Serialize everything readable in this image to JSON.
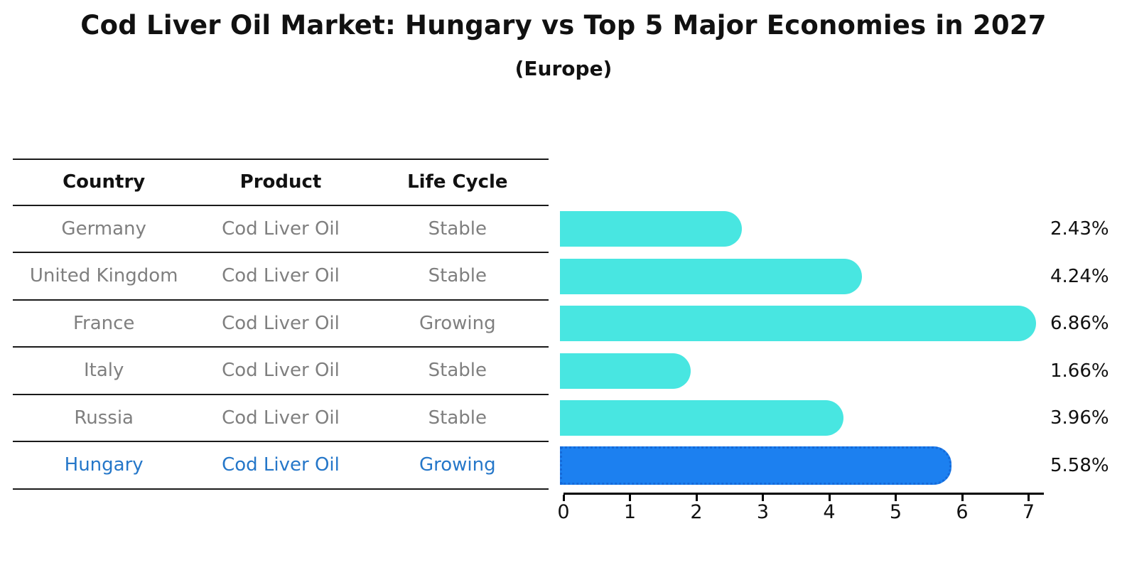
{
  "header": {
    "title": "Cod Liver Oil Market: Hungary vs Top 5 Major Economies in 2027",
    "subtitle": "(Europe)"
  },
  "table": {
    "columns": [
      "Country",
      "Product",
      "Life Cycle"
    ],
    "rows": [
      {
        "country": "Germany",
        "product": "Cod Liver Oil",
        "life_cycle": "Stable"
      },
      {
        "country": "United Kingdom",
        "product": "Cod Liver Oil",
        "life_cycle": "Stable"
      },
      {
        "country": "France",
        "product": "Cod Liver Oil",
        "life_cycle": "Growing"
      },
      {
        "country": "Italy",
        "product": "Cod Liver Oil",
        "life_cycle": "Stable"
      },
      {
        "country": "Russia",
        "product": "Cod Liver Oil",
        "life_cycle": "Stable"
      },
      {
        "country": "Hungary",
        "product": "Cod Liver Oil",
        "life_cycle": "Growing"
      }
    ]
  },
  "chart_data": {
    "type": "bar",
    "orientation": "horizontal",
    "title": "Cod Liver Oil Market: Hungary vs Top 5 Major Economies in 2027",
    "subtitle": "(Europe)",
    "categories": [
      "Germany",
      "United Kingdom",
      "France",
      "Italy",
      "Russia",
      "Hungary"
    ],
    "values": [
      2.43,
      4.24,
      6.86,
      1.66,
      3.96,
      5.58
    ],
    "value_labels": [
      "2.43%",
      "4.24%",
      "6.86%",
      "1.66%",
      "3.96%",
      "5.58%"
    ],
    "xticks": [
      0,
      1,
      2,
      3,
      4,
      5,
      6,
      7
    ],
    "xlim": [
      0,
      7.23
    ],
    "grid": false,
    "legend": "none",
    "highlight_index": 5,
    "colors": {
      "bar": "#48E6E1",
      "highlight_bar": "#1C80F0",
      "highlight_border": "#1569D8",
      "highlight_text": "#2577C9",
      "table_text": "#7f7f7f",
      "axis": "#000000"
    }
  }
}
